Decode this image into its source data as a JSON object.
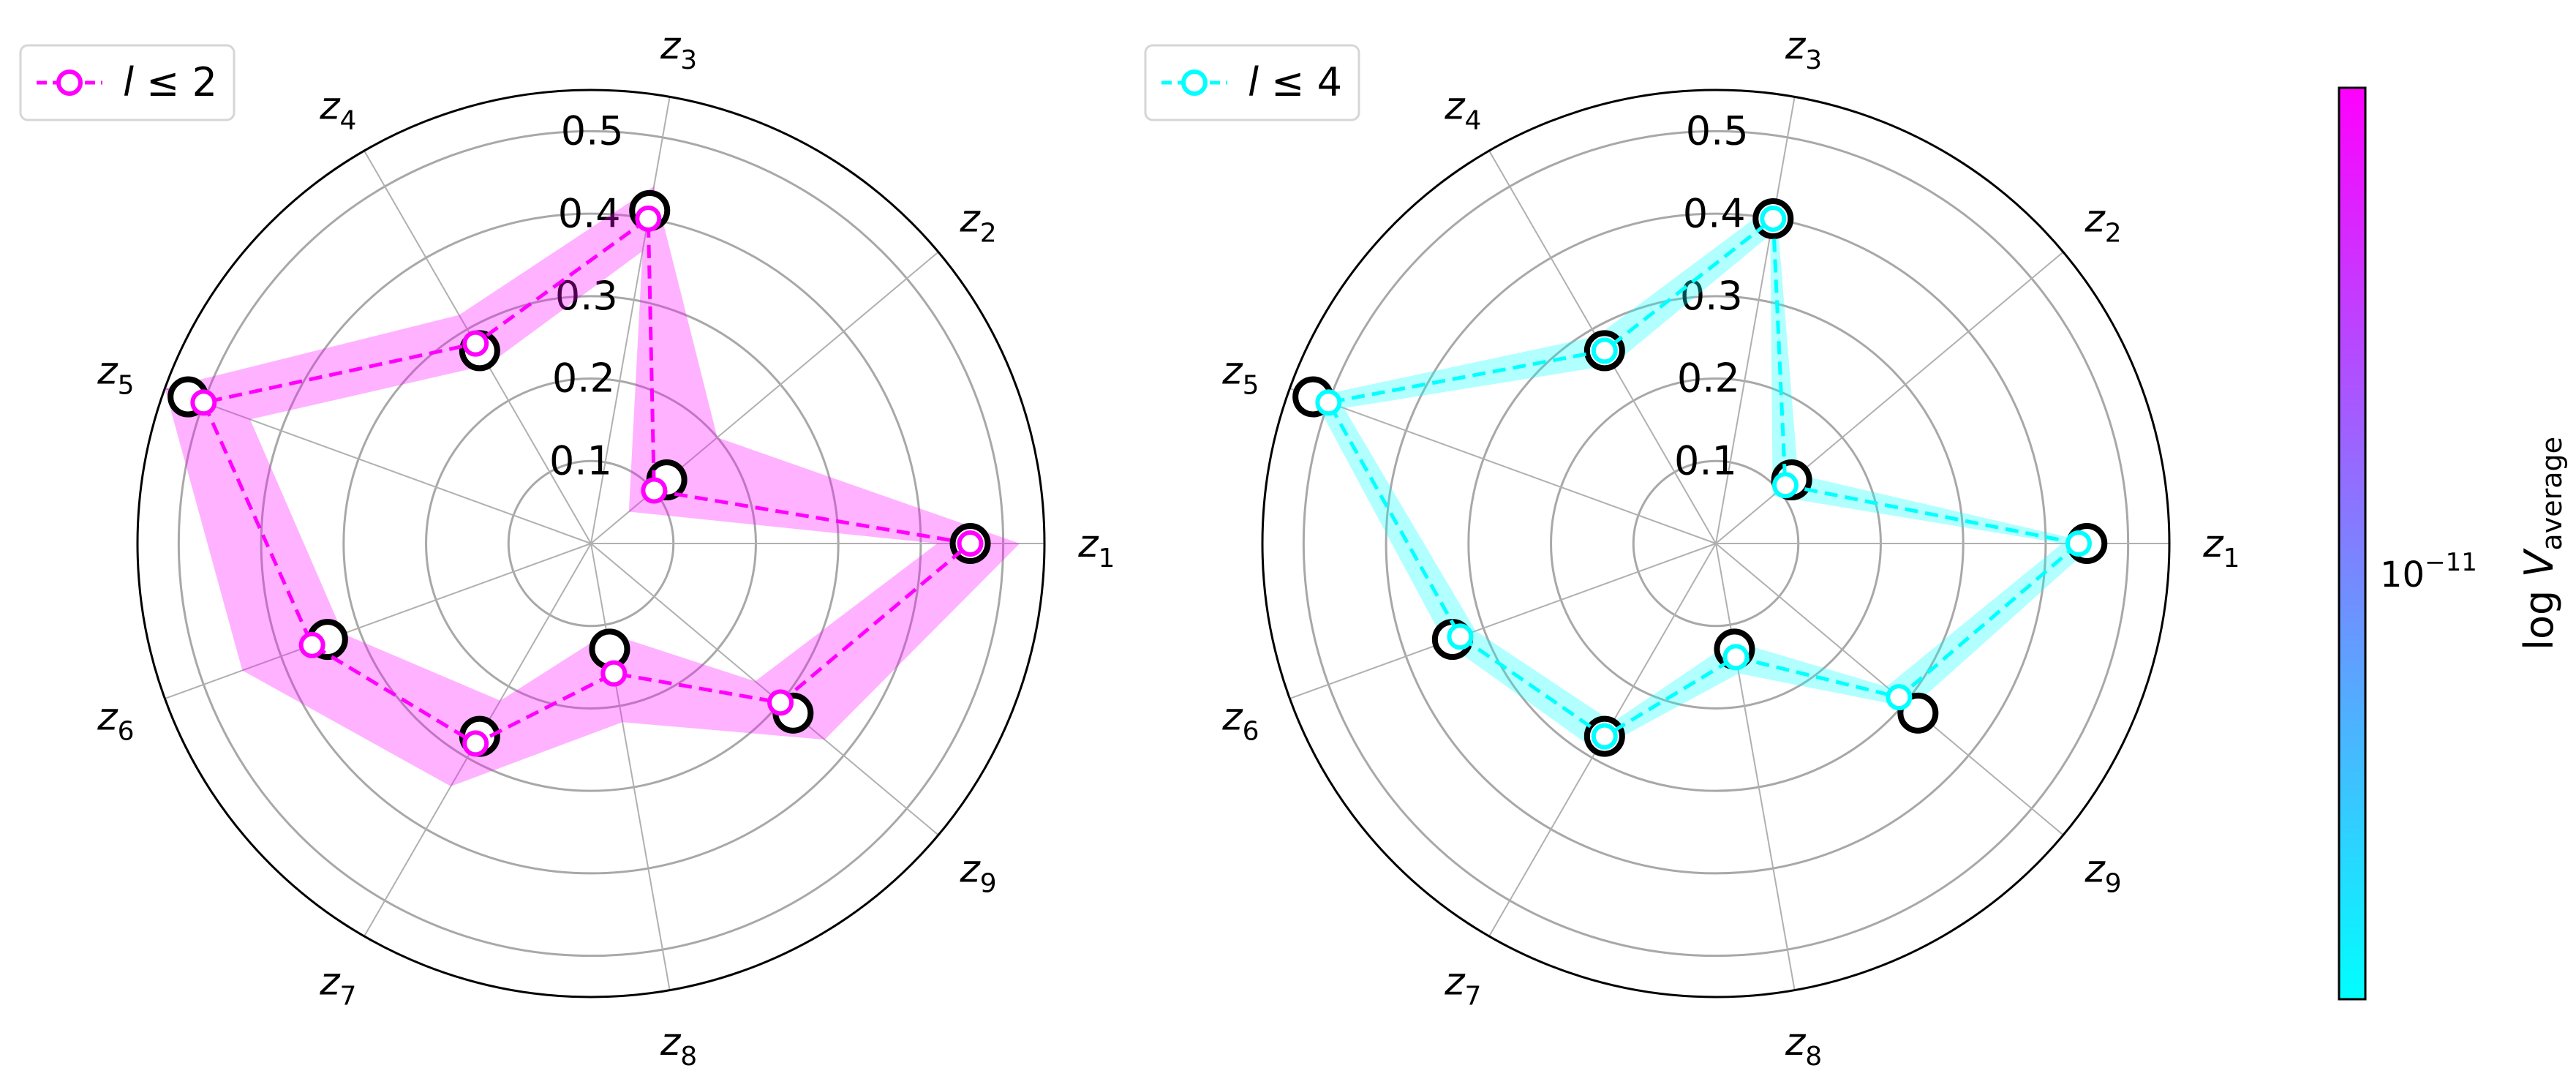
{
  "chart_data": [
    {
      "type": "radar",
      "axes": [
        "z1",
        "z2",
        "z3",
        "z4",
        "z5",
        "z6",
        "z7",
        "z8",
        "z9"
      ],
      "radial_ticks": [
        "0.1",
        "0.2",
        "0.3",
        "0.4",
        "0.5"
      ],
      "rlim": [
        0,
        0.55
      ],
      "grid": true,
      "legend": {
        "entries": [
          "l ≤ 2"
        ],
        "placement": "top-left"
      },
      "series": [
        {
          "name": "l ≤ 2",
          "color": "#ff00ff",
          "values": [
            0.46,
            0.1,
            0.4,
            0.28,
            0.5,
            0.36,
            0.28,
            0.16,
            0.3
          ],
          "band_low": [
            0.42,
            0.06,
            0.36,
            0.25,
            0.44,
            0.32,
            0.22,
            0.11,
            0.26
          ],
          "band_high": [
            0.52,
            0.2,
            0.44,
            0.32,
            0.55,
            0.45,
            0.34,
            0.22,
            0.37
          ]
        }
      ],
      "reference": [
        0.46,
        0.12,
        0.41,
        0.27,
        0.52,
        0.34,
        0.27,
        0.13,
        0.32
      ],
      "reference_color": "#000000"
    },
    {
      "type": "radar",
      "axes": [
        "z1",
        "z2",
        "z3",
        "z4",
        "z5",
        "z6",
        "z7",
        "z8",
        "z9"
      ],
      "radial_ticks": [
        "0.1",
        "0.2",
        "0.3",
        "0.4",
        "0.5"
      ],
      "rlim": [
        0,
        0.55
      ],
      "grid": true,
      "legend": {
        "entries": [
          "l ≤ 4"
        ],
        "placement": "top-left"
      },
      "series": [
        {
          "name": "l ≤ 4",
          "color": "#00ffff",
          "values": [
            0.44,
            0.11,
            0.4,
            0.27,
            0.5,
            0.33,
            0.27,
            0.14,
            0.29
          ],
          "band_low": [
            0.42,
            0.09,
            0.38,
            0.25,
            0.48,
            0.31,
            0.25,
            0.12,
            0.27
          ],
          "band_high": [
            0.46,
            0.13,
            0.42,
            0.29,
            0.52,
            0.35,
            0.29,
            0.16,
            0.31
          ]
        }
      ],
      "reference": [
        0.45,
        0.12,
        0.4,
        0.27,
        0.52,
        0.34,
        0.27,
        0.13,
        0.32
      ],
      "reference_color": "#000000"
    }
  ],
  "colorbar": {
    "label": "log V_average",
    "tick_label": "10^-11",
    "colors": [
      "#00ffff",
      "#ff00ff"
    ]
  }
}
